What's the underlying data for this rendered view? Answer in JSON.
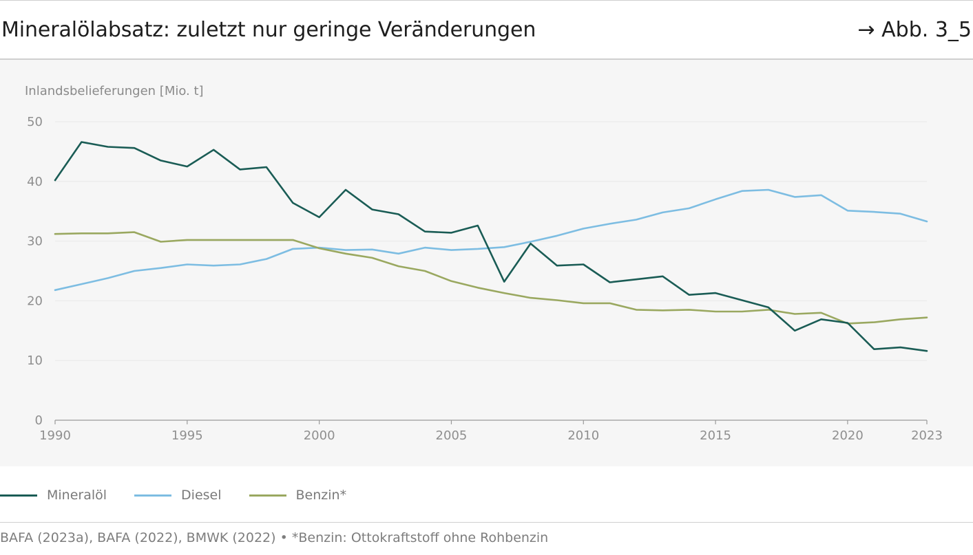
{
  "header": {
    "title": "Mineralölabsatz: zuletzt nur geringe Veränderungen",
    "figure_ref": "→ Abb. 3_5"
  },
  "footer": {
    "source": "BAFA (2023a), BAFA (2022), BMWK (2022) • *Benzin: Ottokraftstoff ohne Rohbenzin"
  },
  "colors": {
    "mineraloel": "#1a5c55",
    "diesel": "#7dbde2",
    "benzin": "#9aa860",
    "grid": "#e8e8e8",
    "axis": "#9a9a9a"
  },
  "chart_data": {
    "type": "line",
    "ylabel": "Inlandsbelieferungen [Mio. t]",
    "xlabel": "",
    "xlim": [
      1990,
      2023
    ],
    "ylim": [
      0,
      50
    ],
    "yticks": [
      0,
      10,
      20,
      30,
      40,
      50
    ],
    "xticks": [
      1990,
      1995,
      2000,
      2005,
      2010,
      2015,
      2020,
      2023
    ],
    "grid": true,
    "legend_position": "bottom-left",
    "x": [
      1990,
      1991,
      1992,
      1993,
      1994,
      1995,
      1996,
      1997,
      1998,
      1999,
      2000,
      2001,
      2002,
      2003,
      2004,
      2005,
      2006,
      2007,
      2008,
      2009,
      2010,
      2011,
      2012,
      2013,
      2014,
      2015,
      2016,
      2017,
      2018,
      2019,
      2020,
      2021,
      2022,
      2023
    ],
    "series": [
      {
        "name": "Mineralöl",
        "color_key": "mineraloel",
        "values": [
          40.2,
          46.6,
          45.8,
          45.6,
          43.5,
          42.5,
          45.3,
          42.0,
          42.4,
          36.4,
          34.0,
          38.6,
          35.3,
          34.5,
          31.6,
          31.4,
          32.6,
          23.2,
          29.6,
          25.9,
          26.1,
          23.1,
          23.6,
          24.1,
          21.0,
          21.3,
          20.1,
          18.9,
          15.0,
          16.9,
          16.3,
          11.9,
          12.2,
          11.6
        ]
      },
      {
        "name": "Diesel",
        "color_key": "diesel",
        "values": [
          21.8,
          22.8,
          23.8,
          25.0,
          25.5,
          26.1,
          25.9,
          26.1,
          27.0,
          28.7,
          28.9,
          28.5,
          28.6,
          27.9,
          28.9,
          28.5,
          28.7,
          29.0,
          29.9,
          30.9,
          32.1,
          32.9,
          33.6,
          34.8,
          35.5,
          37.0,
          38.4,
          38.6,
          37.4,
          37.7,
          35.1,
          34.9,
          34.6,
          33.3
        ]
      },
      {
        "name": "Benzin*",
        "color_key": "benzin",
        "values": [
          31.2,
          31.3,
          31.3,
          31.5,
          29.9,
          30.2,
          30.2,
          30.2,
          30.2,
          30.2,
          28.8,
          27.9,
          27.2,
          25.8,
          25.0,
          23.3,
          22.2,
          21.3,
          20.5,
          20.1,
          19.6,
          19.6,
          18.5,
          18.4,
          18.5,
          18.2,
          18.2,
          18.5,
          17.8,
          18.0,
          16.2,
          16.4,
          16.9,
          17.2
        ]
      }
    ]
  }
}
